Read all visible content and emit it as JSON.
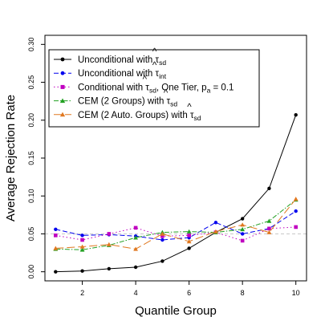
{
  "chart_data": {
    "type": "line",
    "xlabel": "Quantile Group",
    "ylabel": "Average Rejection Rate",
    "xlim": [
      0.6,
      10.4
    ],
    "ylim": [
      -0.012,
      0.312
    ],
    "x_ticks": [
      2,
      4,
      6,
      8,
      10
    ],
    "y_ticks": [
      0.0,
      0.05,
      0.1,
      0.15,
      0.2,
      0.25,
      0.3
    ],
    "y_tick_labels": [
      "0.00",
      "0.05",
      "0.10",
      "0.15",
      "0.20",
      "0.25",
      "0.30"
    ],
    "reference_line": 0.05,
    "reference_color": "#c8c8c8",
    "legend_position": "top-left",
    "x": [
      1,
      2,
      3,
      4,
      5,
      6,
      7,
      8,
      9,
      10
    ],
    "series": [
      {
        "name": "Unconditional with τ̂sd",
        "label_base": "Unconditional with ",
        "label_symbol": "τ",
        "label_hat": "^",
        "label_sub": "sd",
        "label_after": "",
        "color": "#000000",
        "marker": "circle",
        "dash": "",
        "values": [
          0.0,
          0.001,
          0.004,
          0.006,
          0.014,
          0.031,
          0.052,
          0.07,
          0.11,
          0.207
        ]
      },
      {
        "name": "Unconditional with τ̂int",
        "label_base": "Unconditional with ",
        "label_symbol": "τ",
        "label_hat": "^",
        "label_sub": "int",
        "label_after": "",
        "color": "#0000ee",
        "marker": "circle",
        "dash": "6,3",
        "values": [
          0.056,
          0.048,
          0.049,
          0.047,
          0.042,
          0.045,
          0.065,
          0.05,
          0.057,
          0.08
        ]
      },
      {
        "name": "Conditional with τ̂sd, One Tier, pa = 0.1",
        "label_base": "Conditional with ",
        "label_symbol": "τ",
        "label_hat": "^",
        "label_sub": "sd",
        "label_after": ", One Tier, p",
        "label_after_sub": "a",
        "label_tail": " = 0.1",
        "color": "#c000c0",
        "marker": "square",
        "dash": "1.5,3",
        "values": [
          0.048,
          0.042,
          0.05,
          0.058,
          0.047,
          0.048,
          0.052,
          0.041,
          0.057,
          0.059
        ]
      },
      {
        "name": "CEM (2 Groups) with τ̂sd",
        "label_base": "CEM (2 Groups) with ",
        "label_symbol": "τ",
        "label_hat": "^",
        "label_sub": "sd",
        "label_after": "",
        "color": "#22a022",
        "marker": "triangle",
        "dash": "6,2,1.5,2",
        "values": [
          0.03,
          0.029,
          0.035,
          0.045,
          0.052,
          0.053,
          0.052,
          0.056,
          0.067,
          0.095
        ]
      },
      {
        "name": "CEM (2 Auto. Groups) with τ̂sd",
        "label_base": "CEM (2 Auto. Groups) with ",
        "label_symbol": "τ",
        "label_hat": "^",
        "label_sub": "sd",
        "label_after": "",
        "color": "#e07820",
        "marker": "triangle",
        "dash": "10,4",
        "values": [
          0.031,
          0.033,
          0.036,
          0.03,
          0.05,
          0.04,
          0.053,
          0.062,
          0.052,
          0.096
        ]
      }
    ]
  }
}
